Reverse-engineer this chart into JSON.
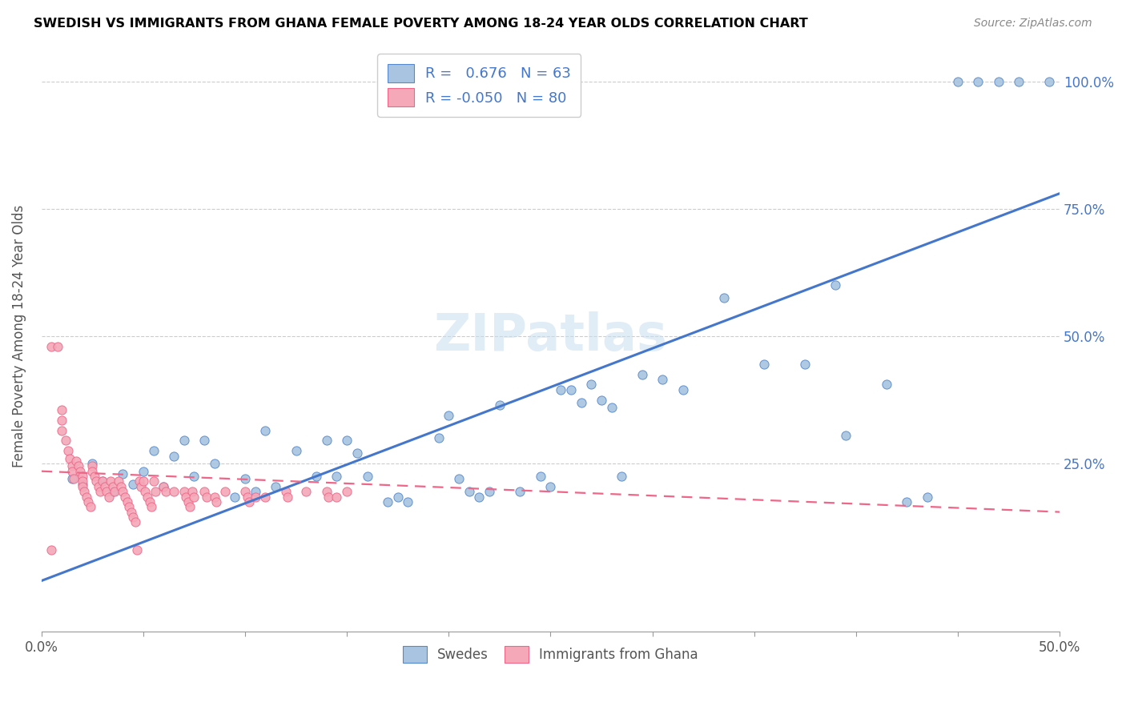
{
  "title": "SWEDISH VS IMMIGRANTS FROM GHANA FEMALE POVERTY AMONG 18-24 YEAR OLDS CORRELATION CHART",
  "source": "Source: ZipAtlas.com",
  "ylabel": "Female Poverty Among 18-24 Year Olds",
  "ytick_labels": [
    "100.0%",
    "75.0%",
    "50.0%",
    "25.0%"
  ],
  "ytick_values": [
    1.0,
    0.75,
    0.5,
    0.25
  ],
  "xlim": [
    0,
    0.5
  ],
  "ylim": [
    -0.08,
    1.08
  ],
  "watermark": "ZIPatlas",
  "legend_blue_label": "R =   0.676   N = 63",
  "legend_pink_label": "R = -0.050   N = 80",
  "blue_color": "#a8c4e0",
  "pink_color": "#f4a8b8",
  "blue_edge_color": "#5588cc",
  "pink_edge_color": "#ee6688",
  "blue_line_color": "#4477cc",
  "pink_line_color": "#ee6688",
  "swedes_label": "Swedes",
  "ghana_label": "Immigrants from Ghana",
  "blue_scatter": [
    [
      0.015,
      0.22
    ],
    [
      0.02,
      0.21
    ],
    [
      0.025,
      0.25
    ],
    [
      0.03,
      0.215
    ],
    [
      0.035,
      0.195
    ],
    [
      0.04,
      0.23
    ],
    [
      0.045,
      0.21
    ],
    [
      0.05,
      0.235
    ],
    [
      0.055,
      0.275
    ],
    [
      0.06,
      0.205
    ],
    [
      0.065,
      0.265
    ],
    [
      0.07,
      0.295
    ],
    [
      0.075,
      0.225
    ],
    [
      0.08,
      0.295
    ],
    [
      0.085,
      0.25
    ],
    [
      0.095,
      0.185
    ],
    [
      0.1,
      0.22
    ],
    [
      0.105,
      0.195
    ],
    [
      0.11,
      0.315
    ],
    [
      0.115,
      0.205
    ],
    [
      0.125,
      0.275
    ],
    [
      0.135,
      0.225
    ],
    [
      0.14,
      0.295
    ],
    [
      0.145,
      0.225
    ],
    [
      0.15,
      0.295
    ],
    [
      0.155,
      0.27
    ],
    [
      0.16,
      0.225
    ],
    [
      0.17,
      0.175
    ],
    [
      0.175,
      0.185
    ],
    [
      0.18,
      0.175
    ],
    [
      0.195,
      0.3
    ],
    [
      0.2,
      0.345
    ],
    [
      0.205,
      0.22
    ],
    [
      0.21,
      0.195
    ],
    [
      0.215,
      0.185
    ],
    [
      0.22,
      0.195
    ],
    [
      0.225,
      0.365
    ],
    [
      0.235,
      0.195
    ],
    [
      0.245,
      0.225
    ],
    [
      0.25,
      0.205
    ],
    [
      0.255,
      0.395
    ],
    [
      0.26,
      0.395
    ],
    [
      0.265,
      0.37
    ],
    [
      0.27,
      0.405
    ],
    [
      0.275,
      0.375
    ],
    [
      0.28,
      0.36
    ],
    [
      0.285,
      0.225
    ],
    [
      0.295,
      0.425
    ],
    [
      0.305,
      0.415
    ],
    [
      0.315,
      0.395
    ],
    [
      0.335,
      0.575
    ],
    [
      0.355,
      0.445
    ],
    [
      0.375,
      0.445
    ],
    [
      0.39,
      0.6
    ],
    [
      0.395,
      0.305
    ],
    [
      0.415,
      0.405
    ],
    [
      0.425,
      0.175
    ],
    [
      0.435,
      0.185
    ],
    [
      0.45,
      1.0
    ],
    [
      0.46,
      1.0
    ],
    [
      0.47,
      1.0
    ],
    [
      0.48,
      1.0
    ],
    [
      0.495,
      1.0
    ]
  ],
  "pink_scatter": [
    [
      0.005,
      0.48
    ],
    [
      0.008,
      0.48
    ],
    [
      0.01,
      0.355
    ],
    [
      0.01,
      0.335
    ],
    [
      0.01,
      0.315
    ],
    [
      0.012,
      0.295
    ],
    [
      0.013,
      0.275
    ],
    [
      0.014,
      0.26
    ],
    [
      0.015,
      0.245
    ],
    [
      0.015,
      0.235
    ],
    [
      0.016,
      0.22
    ],
    [
      0.017,
      0.255
    ],
    [
      0.018,
      0.245
    ],
    [
      0.019,
      0.235
    ],
    [
      0.02,
      0.225
    ],
    [
      0.02,
      0.215
    ],
    [
      0.02,
      0.205
    ],
    [
      0.021,
      0.195
    ],
    [
      0.022,
      0.185
    ],
    [
      0.023,
      0.175
    ],
    [
      0.024,
      0.165
    ],
    [
      0.025,
      0.245
    ],
    [
      0.025,
      0.235
    ],
    [
      0.026,
      0.225
    ],
    [
      0.027,
      0.215
    ],
    [
      0.028,
      0.205
    ],
    [
      0.029,
      0.195
    ],
    [
      0.03,
      0.215
    ],
    [
      0.031,
      0.205
    ],
    [
      0.032,
      0.195
    ],
    [
      0.033,
      0.185
    ],
    [
      0.034,
      0.215
    ],
    [
      0.035,
      0.205
    ],
    [
      0.036,
      0.195
    ],
    [
      0.038,
      0.215
    ],
    [
      0.039,
      0.205
    ],
    [
      0.04,
      0.195
    ],
    [
      0.041,
      0.185
    ],
    [
      0.042,
      0.175
    ],
    [
      0.043,
      0.165
    ],
    [
      0.044,
      0.155
    ],
    [
      0.045,
      0.145
    ],
    [
      0.046,
      0.135
    ],
    [
      0.047,
      0.08
    ],
    [
      0.048,
      0.215
    ],
    [
      0.049,
      0.205
    ],
    [
      0.05,
      0.215
    ],
    [
      0.051,
      0.195
    ],
    [
      0.052,
      0.185
    ],
    [
      0.053,
      0.175
    ],
    [
      0.054,
      0.165
    ],
    [
      0.055,
      0.215
    ],
    [
      0.056,
      0.195
    ],
    [
      0.06,
      0.205
    ],
    [
      0.061,
      0.195
    ],
    [
      0.065,
      0.195
    ],
    [
      0.07,
      0.195
    ],
    [
      0.071,
      0.185
    ],
    [
      0.072,
      0.175
    ],
    [
      0.073,
      0.165
    ],
    [
      0.074,
      0.195
    ],
    [
      0.075,
      0.185
    ],
    [
      0.08,
      0.195
    ],
    [
      0.081,
      0.185
    ],
    [
      0.085,
      0.185
    ],
    [
      0.086,
      0.175
    ],
    [
      0.09,
      0.195
    ],
    [
      0.1,
      0.195
    ],
    [
      0.101,
      0.185
    ],
    [
      0.102,
      0.175
    ],
    [
      0.105,
      0.185
    ],
    [
      0.11,
      0.185
    ],
    [
      0.12,
      0.195
    ],
    [
      0.121,
      0.185
    ],
    [
      0.13,
      0.195
    ],
    [
      0.14,
      0.195
    ],
    [
      0.141,
      0.185
    ],
    [
      0.145,
      0.185
    ],
    [
      0.15,
      0.195
    ],
    [
      0.005,
      0.08
    ]
  ],
  "blue_trendline_x": [
    0,
    0.5
  ],
  "blue_trendline_y": [
    0.02,
    0.78
  ],
  "pink_trendline_x": [
    0.0,
    0.5
  ],
  "pink_trendline_y": [
    0.235,
    0.155
  ]
}
